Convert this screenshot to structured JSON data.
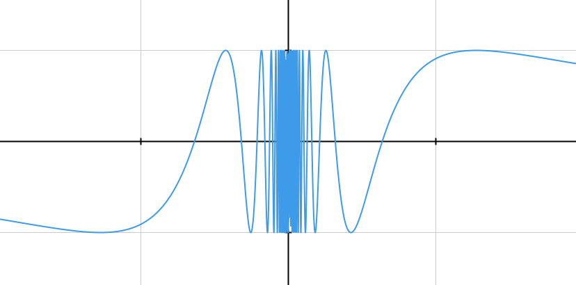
{
  "chart_data": {
    "type": "line",
    "title": "",
    "xlabel": "",
    "ylabel": "",
    "function": "y = sin(1/x)",
    "xlim": [
      -1,
      1
    ],
    "ylim": [
      -1.5,
      1.5
    ],
    "grid": true,
    "grid_x": [
      -0.5,
      0.5
    ],
    "grid_y": [
      -1,
      1
    ],
    "axis_ticks_x": [
      -0.5,
      0.5
    ],
    "axis_ticks_y": [
      -1,
      1
    ],
    "series": [
      {
        "color": "#3d9be9",
        "sample_points": [
          {
            "x": -1.0,
            "y": -0.841
          },
          {
            "x": -0.637,
            "y": -1.0
          },
          {
            "x": -0.318,
            "y": 0.0
          },
          {
            "x": -0.212,
            "y": 1.0
          },
          {
            "x": 0.212,
            "y": -1.0
          },
          {
            "x": 0.318,
            "y": 0.0
          },
          {
            "x": 0.637,
            "y": 1.0
          },
          {
            "x": 1.0,
            "y": 0.841
          }
        ]
      }
    ],
    "colors": {
      "grid": "#cccccc",
      "axis": "#000000",
      "curve": "#3d9be9"
    }
  }
}
